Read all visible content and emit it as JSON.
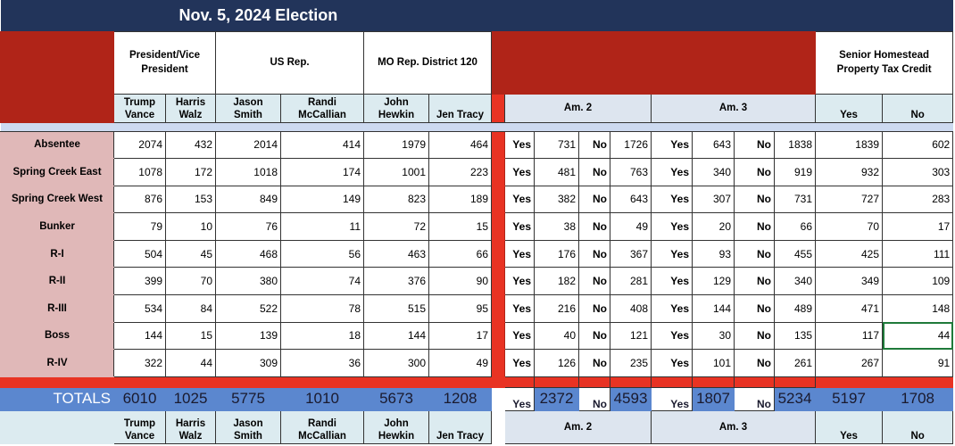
{
  "title": "Nov. 5, 2024 Election",
  "groups": {
    "president": "President/Vice President",
    "us_rep": "US Rep.",
    "mo_rep": "MO Rep. District 120",
    "senior": "Senior Homestead Property Tax Credit"
  },
  "candidates": [
    "Trump Vance",
    "Harris Walz",
    "Jason Smith",
    "Randi McCallian",
    "John Hewkin",
    "Jen Tracy"
  ],
  "amendments": [
    "Am. 2",
    "Am. 3"
  ],
  "yes_label": "Yes",
  "no_label": "No",
  "rows": [
    {
      "label": "Absentee",
      "c": [
        2074,
        432,
        2014,
        414,
        1979,
        464
      ],
      "am2": [
        731,
        1726
      ],
      "am3": [
        643,
        1838
      ],
      "sh": [
        1839,
        602
      ]
    },
    {
      "label": "Spring Creek East",
      "c": [
        1078,
        172,
        1018,
        174,
        1001,
        223
      ],
      "am2": [
        481,
        763
      ],
      "am3": [
        340,
        919
      ],
      "sh": [
        932,
        303
      ]
    },
    {
      "label": "Spring Creek West",
      "c": [
        876,
        153,
        849,
        149,
        823,
        189
      ],
      "am2": [
        382,
        643
      ],
      "am3": [
        307,
        731
      ],
      "sh": [
        727,
        283
      ]
    },
    {
      "label": "Bunker",
      "c": [
        79,
        10,
        76,
        11,
        72,
        15
      ],
      "am2": [
        38,
        49
      ],
      "am3": [
        20,
        66
      ],
      "sh": [
        70,
        17
      ]
    },
    {
      "label": "R-I",
      "c": [
        504,
        45,
        468,
        56,
        463,
        66
      ],
      "am2": [
        176,
        367
      ],
      "am3": [
        93,
        455
      ],
      "sh": [
        425,
        111
      ]
    },
    {
      "label": "R-II",
      "c": [
        399,
        70,
        380,
        74,
        376,
        90
      ],
      "am2": [
        182,
        281
      ],
      "am3": [
        129,
        340
      ],
      "sh": [
        349,
        109
      ]
    },
    {
      "label": "R-III",
      "c": [
        534,
        84,
        522,
        78,
        515,
        95
      ],
      "am2": [
        216,
        408
      ],
      "am3": [
        144,
        489
      ],
      "sh": [
        471,
        148
      ]
    },
    {
      "label": "Boss",
      "c": [
        144,
        15,
        139,
        18,
        144,
        17
      ],
      "am2": [
        40,
        121
      ],
      "am3": [
        30,
        135
      ],
      "sh": [
        117,
        44
      ]
    },
    {
      "label": "R-IV",
      "c": [
        322,
        44,
        309,
        36,
        300,
        49
      ],
      "am2": [
        126,
        235
      ],
      "am3": [
        101,
        261
      ],
      "sh": [
        267,
        91
      ]
    }
  ],
  "totals": {
    "label": "TOTALS",
    "c": [
      6010,
      1025,
      5775,
      1010,
      5673,
      1208
    ],
    "am2": [
      2372,
      4593
    ],
    "am3": [
      1807,
      5234
    ],
    "sh": [
      5197,
      1708
    ]
  },
  "colors": {
    "navy": "#22345a",
    "dark_red": "#b02418",
    "bright_red": "#e83323",
    "totals_blue": "#5b87cf",
    "row_label_pink": "#e0b8b8",
    "selected_cell_border": "#1f7a3a"
  }
}
